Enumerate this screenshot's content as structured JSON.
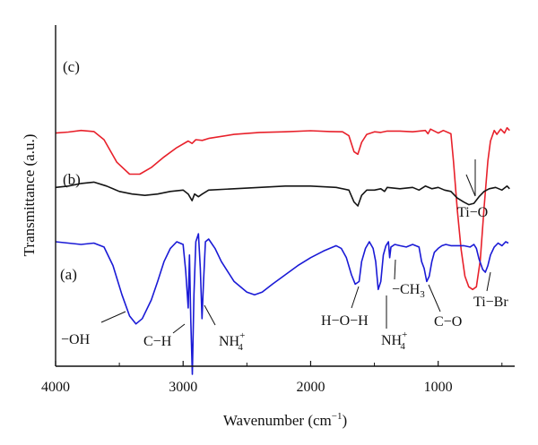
{
  "chart_data": {
    "type": "line",
    "xlabel": "Wavenumber (cm",
    "xlabel_sup": "−1",
    "xlabel_close": ")",
    "ylabel": "Transmittance (a.u.)",
    "x_direction": "reversed",
    "xlim": [
      4000,
      400
    ],
    "xticks": [
      4000,
      3000,
      2000,
      1000
    ],
    "ytick_labels": "none",
    "grid": false,
    "legend": "none",
    "series": [
      {
        "name": "(c)",
        "color": "#e8212b",
        "offset": 0.86,
        "points": [
          [
            4000,
            0.04
          ],
          [
            3900,
            0.032
          ],
          [
            3800,
            0.02
          ],
          [
            3700,
            0.028
          ],
          [
            3620,
            0.09
          ],
          [
            3520,
            0.26
          ],
          [
            3420,
            0.35
          ],
          [
            3340,
            0.35
          ],
          [
            3250,
            0.3
          ],
          [
            3150,
            0.22
          ],
          [
            3050,
            0.15
          ],
          [
            2960,
            0.1
          ],
          [
            2930,
            0.118
          ],
          [
            2900,
            0.09
          ],
          [
            2850,
            0.095
          ],
          [
            2800,
            0.08
          ],
          [
            2600,
            0.05
          ],
          [
            2400,
            0.035
          ],
          [
            2200,
            0.03
          ],
          [
            2000,
            0.022
          ],
          [
            1850,
            0.028
          ],
          [
            1750,
            0.03
          ],
          [
            1700,
            0.06
          ],
          [
            1660,
            0.18
          ],
          [
            1630,
            0.2
          ],
          [
            1600,
            0.11
          ],
          [
            1560,
            0.05
          ],
          [
            1500,
            0.03
          ],
          [
            1450,
            0.035
          ],
          [
            1400,
            0.025
          ],
          [
            1300,
            0.025
          ],
          [
            1200,
            0.03
          ],
          [
            1100,
            0.02
          ],
          [
            1080,
            0.045
          ],
          [
            1060,
            0.01
          ],
          [
            1000,
            0.04
          ],
          [
            960,
            0.02
          ],
          [
            900,
            0.045
          ],
          [
            880,
            0.25
          ],
          [
            850,
            0.62
          ],
          [
            820,
            0.92
          ],
          [
            790,
            1.12
          ],
          [
            760,
            1.2
          ],
          [
            730,
            1.22
          ],
          [
            700,
            1.2
          ],
          [
            670,
            1.0
          ],
          [
            640,
            0.6
          ],
          [
            610,
            0.25
          ],
          [
            590,
            0.1
          ],
          [
            560,
            0.02
          ],
          [
            540,
            0.05
          ],
          [
            510,
            0.01
          ],
          [
            480,
            0.04
          ],
          [
            460,
            0.0
          ],
          [
            440,
            0.02
          ]
        ]
      },
      {
        "name": "(b)",
        "color": "#141414",
        "offset": 0.42,
        "points": [
          [
            4000,
            0.01
          ],
          [
            3900,
            0.0
          ],
          [
            3800,
            -0.02
          ],
          [
            3700,
            -0.03
          ],
          [
            3600,
            0.0
          ],
          [
            3500,
            0.04
          ],
          [
            3400,
            0.06
          ],
          [
            3300,
            0.07
          ],
          [
            3200,
            0.06
          ],
          [
            3100,
            0.04
          ],
          [
            3000,
            0.03
          ],
          [
            2960,
            0.06
          ],
          [
            2930,
            0.11
          ],
          [
            2910,
            0.06
          ],
          [
            2880,
            0.08
          ],
          [
            2850,
            0.06
          ],
          [
            2800,
            0.03
          ],
          [
            2600,
            0.02
          ],
          [
            2400,
            0.01
          ],
          [
            2200,
            0.0
          ],
          [
            2000,
            0.0
          ],
          [
            1800,
            0.01
          ],
          [
            1700,
            0.03
          ],
          [
            1660,
            0.12
          ],
          [
            1630,
            0.15
          ],
          [
            1600,
            0.07
          ],
          [
            1560,
            0.03
          ],
          [
            1500,
            0.03
          ],
          [
            1450,
            0.02
          ],
          [
            1420,
            0.04
          ],
          [
            1400,
            0.01
          ],
          [
            1300,
            0.02
          ],
          [
            1200,
            0.01
          ],
          [
            1150,
            0.03
          ],
          [
            1100,
            0.0
          ],
          [
            1050,
            0.02
          ],
          [
            1000,
            0.01
          ],
          [
            950,
            0.03
          ],
          [
            900,
            0.04
          ],
          [
            850,
            0.09
          ],
          [
            800,
            0.12
          ],
          [
            760,
            0.14
          ],
          [
            720,
            0.13
          ],
          [
            680,
            0.08
          ],
          [
            640,
            0.04
          ],
          [
            600,
            0.02
          ],
          [
            550,
            0.01
          ],
          [
            500,
            0.03
          ],
          [
            460,
            0.0
          ],
          [
            440,
            0.02
          ]
        ]
      },
      {
        "name": "(a)",
        "color": "#1a1ad6",
        "offset": 0.0,
        "points": [
          [
            4000,
            0.0
          ],
          [
            3900,
            0.01
          ],
          [
            3800,
            0.02
          ],
          [
            3700,
            0.01
          ],
          [
            3620,
            0.04
          ],
          [
            3550,
            0.18
          ],
          [
            3480,
            0.4
          ],
          [
            3420,
            0.56
          ],
          [
            3370,
            0.62
          ],
          [
            3320,
            0.58
          ],
          [
            3250,
            0.44
          ],
          [
            3200,
            0.3
          ],
          [
            3150,
            0.15
          ],
          [
            3100,
            0.05
          ],
          [
            3050,
            0.0
          ],
          [
            3000,
            0.02
          ],
          [
            2980,
            0.22
          ],
          [
            2960,
            0.5
          ],
          [
            2950,
            0.1
          ],
          [
            2940,
            0.6
          ],
          [
            2928,
            1.0
          ],
          [
            2915,
            0.4
          ],
          [
            2900,
            0.0
          ],
          [
            2880,
            -0.06
          ],
          [
            2865,
            0.2
          ],
          [
            2852,
            0.58
          ],
          [
            2840,
            0.3
          ],
          [
            2825,
            0.0
          ],
          [
            2800,
            -0.02
          ],
          [
            2750,
            0.05
          ],
          [
            2700,
            0.15
          ],
          [
            2600,
            0.3
          ],
          [
            2500,
            0.38
          ],
          [
            2440,
            0.4
          ],
          [
            2380,
            0.38
          ],
          [
            2300,
            0.32
          ],
          [
            2200,
            0.25
          ],
          [
            2100,
            0.18
          ],
          [
            2000,
            0.12
          ],
          [
            1900,
            0.07
          ],
          [
            1800,
            0.03
          ],
          [
            1760,
            0.05
          ],
          [
            1720,
            0.12
          ],
          [
            1680,
            0.25
          ],
          [
            1650,
            0.32
          ],
          [
            1620,
            0.3
          ],
          [
            1600,
            0.15
          ],
          [
            1570,
            0.05
          ],
          [
            1540,
            0.0
          ],
          [
            1510,
            0.05
          ],
          [
            1490,
            0.15
          ],
          [
            1470,
            0.36
          ],
          [
            1450,
            0.3
          ],
          [
            1430,
            0.1
          ],
          [
            1410,
            0.03
          ],
          [
            1390,
            0.0
          ],
          [
            1380,
            0.12
          ],
          [
            1370,
            0.04
          ],
          [
            1340,
            0.02
          ],
          [
            1300,
            0.03
          ],
          [
            1250,
            0.04
          ],
          [
            1200,
            0.02
          ],
          [
            1150,
            0.04
          ],
          [
            1130,
            0.15
          ],
          [
            1110,
            0.2
          ],
          [
            1090,
            0.3
          ],
          [
            1070,
            0.26
          ],
          [
            1050,
            0.15
          ],
          [
            1030,
            0.08
          ],
          [
            1000,
            0.05
          ],
          [
            970,
            0.03
          ],
          [
            940,
            0.02
          ],
          [
            900,
            0.03
          ],
          [
            850,
            0.03
          ],
          [
            800,
            0.03
          ],
          [
            750,
            0.04
          ],
          [
            720,
            0.02
          ],
          [
            700,
            0.05
          ],
          [
            680,
            0.13
          ],
          [
            650,
            0.21
          ],
          [
            630,
            0.23
          ],
          [
            610,
            0.18
          ],
          [
            590,
            0.1
          ],
          [
            560,
            0.04
          ],
          [
            530,
            0.01
          ],
          [
            500,
            0.03
          ],
          [
            470,
            0.0
          ],
          [
            450,
            0.01
          ]
        ]
      }
    ],
    "series_labels": [
      "(c)",
      "(b)",
      "(a)"
    ],
    "annotations": [
      {
        "id": "oh",
        "text": "−OH"
      },
      {
        "id": "ch",
        "text": "C−H"
      },
      {
        "id": "nh4a",
        "text": "NH",
        "sub": "4",
        "sup": "+"
      },
      {
        "id": "hoh",
        "text": "H−O−H"
      },
      {
        "id": "nh4b",
        "text": "NH",
        "sub": "4",
        "sup": "+"
      },
      {
        "id": "ch3",
        "text": "−CH",
        "sub": "3"
      },
      {
        "id": "co",
        "text": "C−O"
      },
      {
        "id": "tibr",
        "text": "Ti−Br"
      },
      {
        "id": "tio",
        "text": "Ti−O"
      }
    ]
  }
}
